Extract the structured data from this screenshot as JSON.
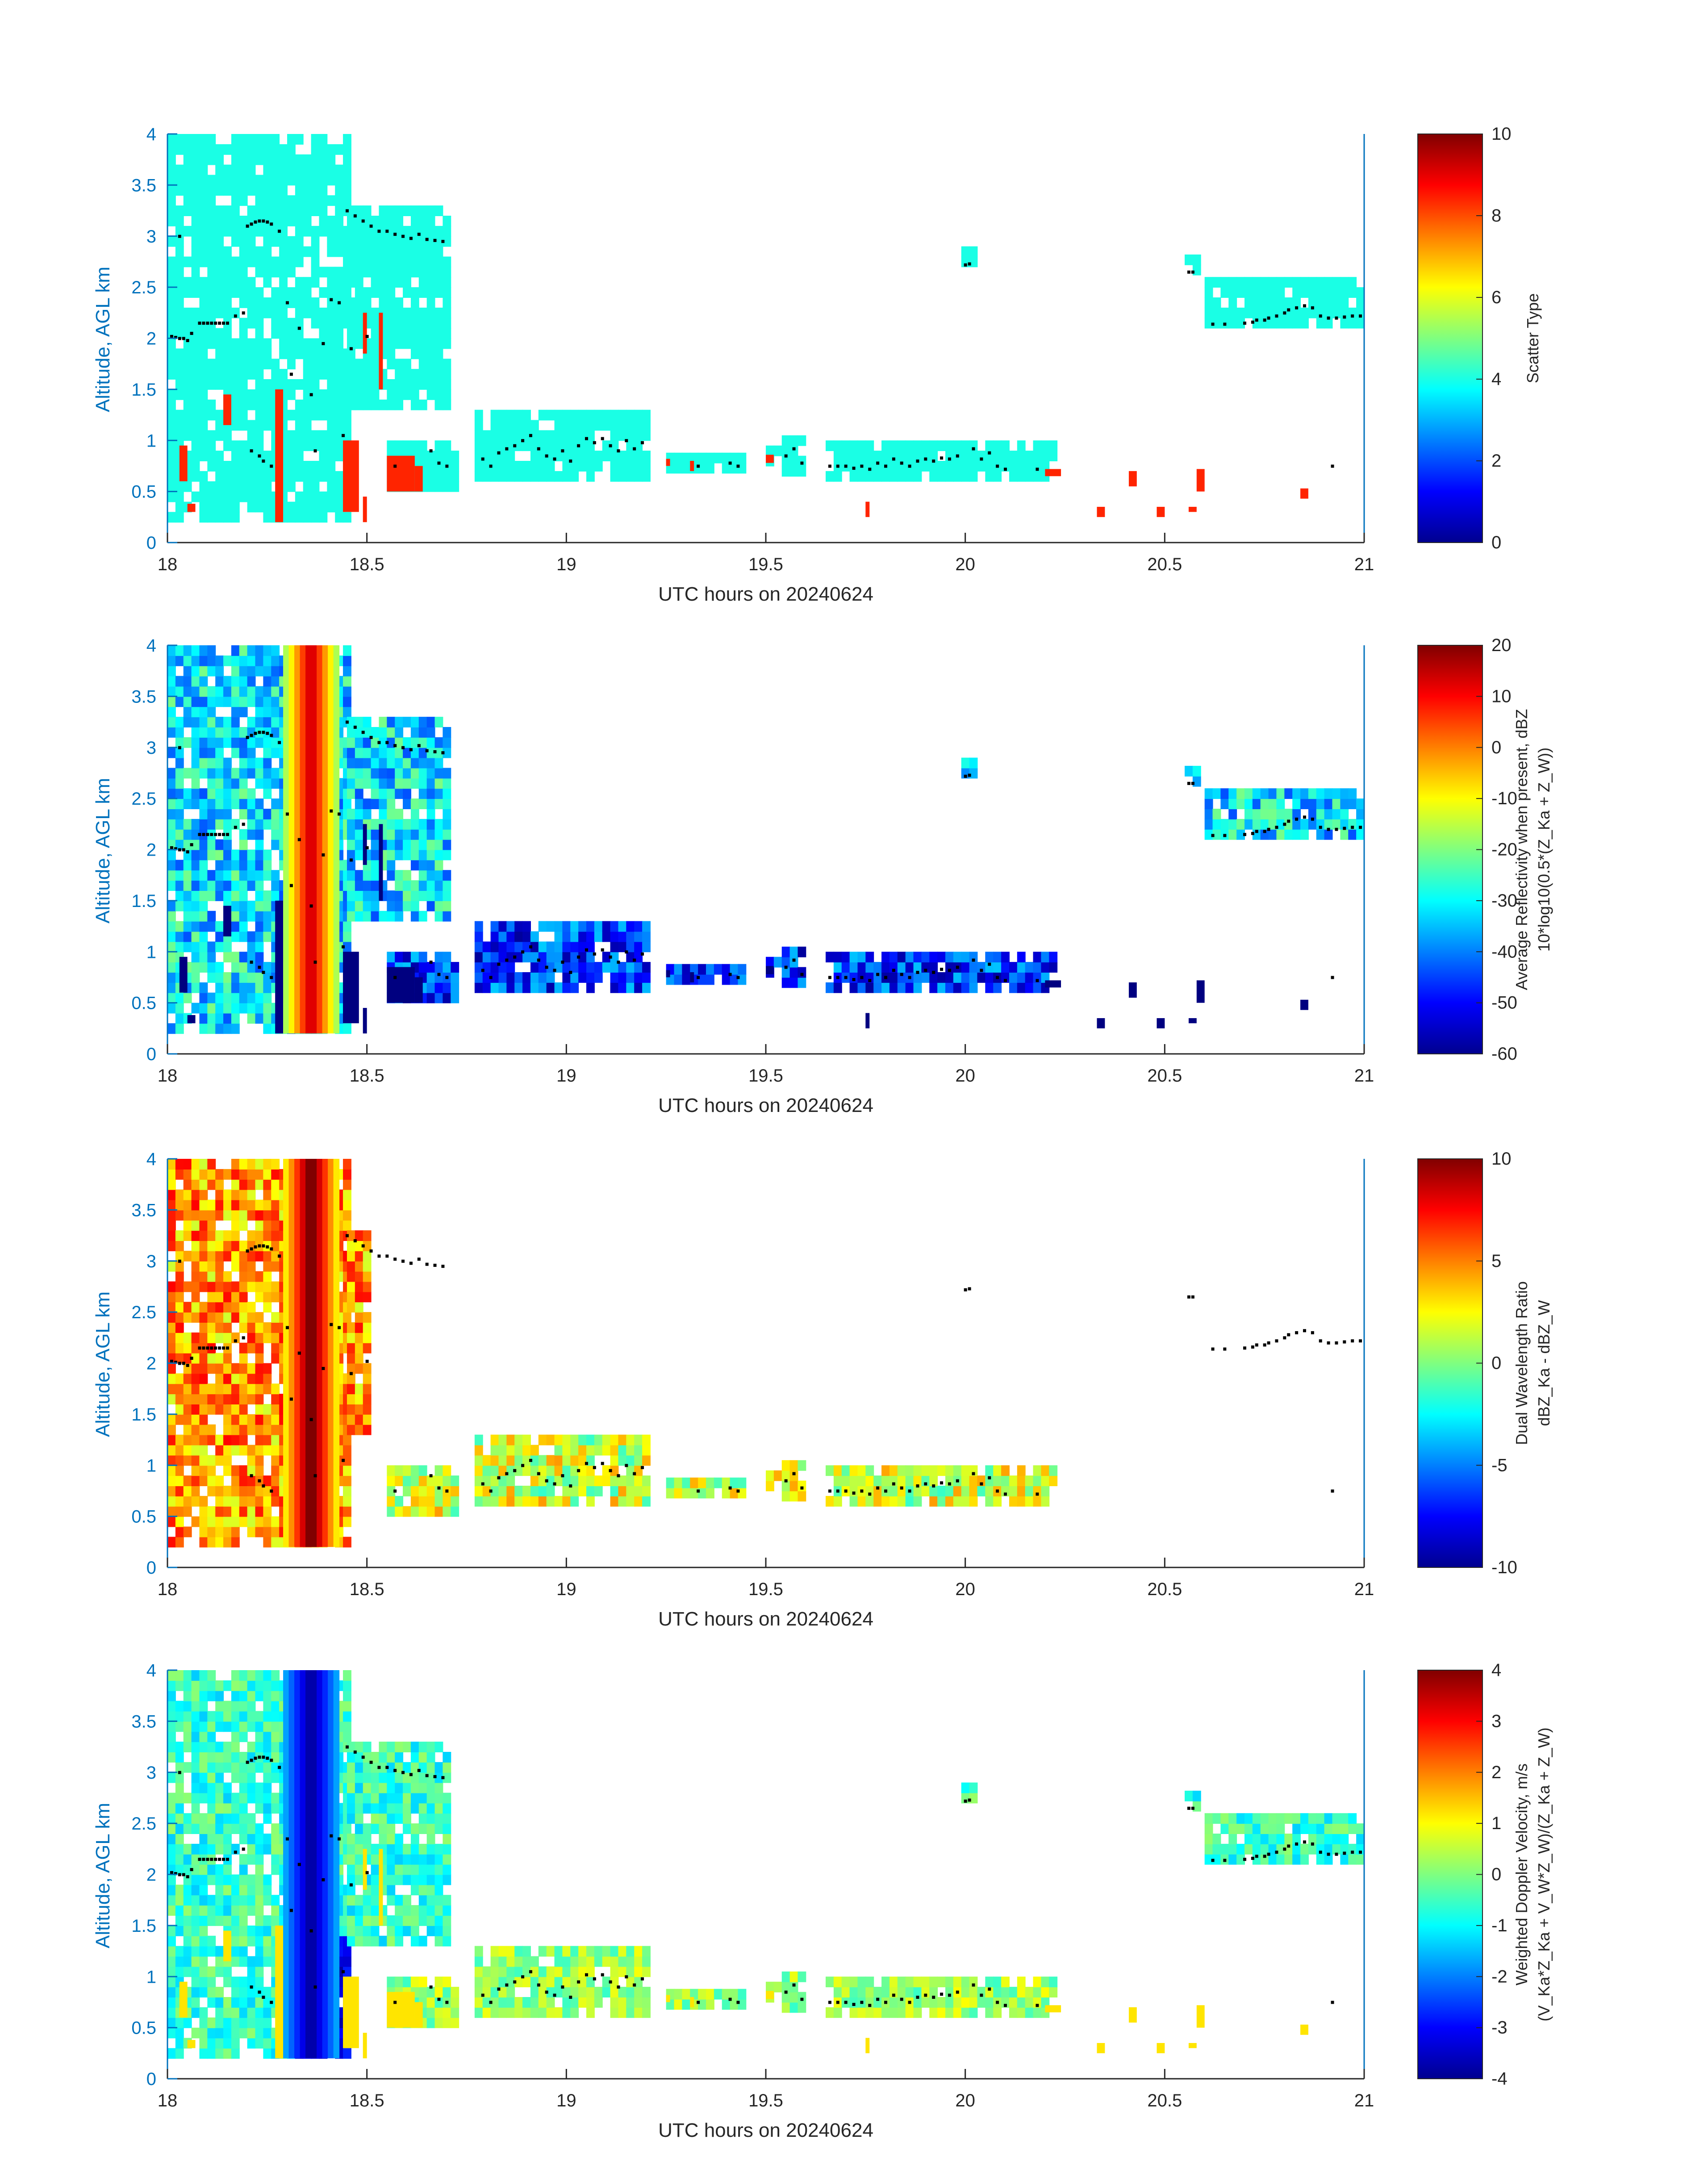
{
  "figure": {
    "date": "20240624"
  },
  "chart_data": [
    {
      "type": "heatmap",
      "xlabel": "UTC hours on 20240624",
      "ylabel": "Altitude, AGL km",
      "xlim": [
        18,
        21
      ],
      "ylim": [
        0,
        4
      ],
      "xticks": [
        "18",
        "18.5",
        "19",
        "19.5",
        "20",
        "20.5",
        "21"
      ],
      "yticks": [
        "0",
        "0.5",
        "1",
        "1.5",
        "2",
        "2.5",
        "3",
        "3.5",
        "4"
      ],
      "colorbar": {
        "label_lines": [
          "Scatter Type"
        ],
        "ticks": [
          "0",
          "2",
          "4",
          "6",
          "8",
          "10"
        ],
        "range": [
          0,
          10
        ],
        "colormap": "jet"
      },
      "field": "scatter_type",
      "feature_values": {
        "cloud": 4.0,
        "rain": 8.4
      },
      "grid": false
    },
    {
      "type": "heatmap",
      "xlabel": "UTC hours on 20240624",
      "ylabel": "Altitude, AGL km",
      "xlim": [
        18,
        21
      ],
      "ylim": [
        0,
        4
      ],
      "xticks": [
        "18",
        "18.5",
        "19",
        "19.5",
        "20",
        "20.5",
        "21"
      ],
      "yticks": [
        "0",
        "0.5",
        "1",
        "1.5",
        "2",
        "2.5",
        "3",
        "3.5",
        "4"
      ],
      "colorbar": {
        "label_lines": [
          "Average Reflectivity when present, dBZ",
          "10*log10(0.5*(Z_Ka + Z_W))"
        ],
        "ticks": [
          "-60",
          "-50",
          "-40",
          "-30",
          "-20",
          "-10",
          "0",
          "10",
          "20"
        ],
        "range": [
          -60,
          20
        ],
        "colormap": "jet"
      },
      "field": "reflectivity",
      "feature_values": {
        "upper_cloud": -32,
        "lower_cloud": -46,
        "rain_shaft": 14,
        "drizzle": -60
      },
      "grid": false
    },
    {
      "type": "heatmap",
      "xlabel": "UTC hours on 20240624",
      "ylabel": "Altitude, AGL km",
      "xlim": [
        18,
        21
      ],
      "ylim": [
        0,
        4
      ],
      "xticks": [
        "18",
        "18.5",
        "19",
        "19.5",
        "20",
        "20.5",
        "21"
      ],
      "yticks": [
        "0",
        "0.5",
        "1",
        "1.5",
        "2",
        "2.5",
        "3",
        "3.5",
        "4"
      ],
      "colorbar": {
        "label_lines": [
          "Dual Wavelength Ratio",
          "dBZ_Ka - dBZ_W"
        ],
        "ticks": [
          "-10",
          "-5",
          "0",
          "5",
          "10"
        ],
        "range": [
          -10,
          10
        ],
        "colormap": "jet"
      },
      "field": "dual_wavelength_ratio",
      "feature_values": {
        "upper_cloud": 4.5,
        "lower_cloud": 1.5,
        "rain_shaft": 10
      },
      "grid": false
    },
    {
      "type": "heatmap",
      "xlabel": "UTC hours on 20240624",
      "ylabel": "Altitude, AGL km",
      "xlim": [
        18,
        21
      ],
      "ylim": [
        0,
        4
      ],
      "xticks": [
        "18",
        "18.5",
        "19",
        "19.5",
        "20",
        "20.5",
        "21"
      ],
      "yticks": [
        "0",
        "0.5",
        "1",
        "1.5",
        "2",
        "2.5",
        "3",
        "3.5",
        "4"
      ],
      "colorbar": {
        "label_lines": [
          "Weighted Doppler Velocity, m/s",
          "(V_Ka*Z_Ka + V_W*Z_W)/(Z_Ka + Z_W)"
        ],
        "ticks": [
          "-4",
          "-3",
          "-2",
          "-1",
          "0",
          "1",
          "2",
          "3",
          "4"
        ],
        "range": [
          -4,
          4
        ],
        "colormap": "jet"
      },
      "field": "doppler_velocity",
      "feature_values": {
        "upper_cloud": -0.6,
        "lower_cloud": 0.2,
        "rain_shaft": -3.6
      },
      "grid": false
    }
  ],
  "cloud_regions": [
    {
      "x0": 18.0,
      "x1": 18.45,
      "y0": 0.2,
      "y1": 4.0,
      "kind": "upper"
    },
    {
      "x0": 18.45,
      "x1": 18.7,
      "y0": 1.3,
      "y1": 3.3,
      "kind": "upper"
    },
    {
      "x0": 18.55,
      "x1": 18.72,
      "y0": 0.5,
      "y1": 1.0,
      "kind": "lower"
    },
    {
      "x0": 18.77,
      "x1": 19.2,
      "y0": 0.6,
      "y1": 1.25,
      "kind": "lower"
    },
    {
      "x0": 19.25,
      "x1": 19.45,
      "y0": 0.68,
      "y1": 0.88,
      "kind": "lower"
    },
    {
      "x0": 19.5,
      "x1": 19.6,
      "y0": 0.65,
      "y1": 1.0,
      "kind": "lower"
    },
    {
      "x0": 19.65,
      "x1": 20.22,
      "y0": 0.6,
      "y1": 1.0,
      "kind": "lower"
    },
    {
      "x0": 19.99,
      "x1": 20.02,
      "y0": 2.7,
      "y1": 2.85,
      "kind": "upper"
    },
    {
      "x0": 20.55,
      "x1": 20.58,
      "y0": 2.62,
      "y1": 2.8,
      "kind": "upper"
    },
    {
      "x0": 20.6,
      "x1": 21.0,
      "y0": 2.1,
      "y1": 2.55,
      "kind": "upper"
    }
  ],
  "rain_patches": [
    {
      "x0": 18.03,
      "x1": 18.05,
      "y0": 0.6,
      "y1": 0.95
    },
    {
      "x0": 18.05,
      "x1": 18.07,
      "y0": 0.3,
      "y1": 0.38
    },
    {
      "x0": 18.14,
      "x1": 18.16,
      "y0": 1.15,
      "y1": 1.45
    },
    {
      "x0": 18.27,
      "x1": 18.29,
      "y0": 0.2,
      "y1": 1.5
    },
    {
      "x0": 18.44,
      "x1": 18.48,
      "y0": 0.3,
      "y1": 1.0
    },
    {
      "x0": 18.49,
      "x1": 18.5,
      "y0": 0.2,
      "y1": 0.45
    },
    {
      "x0": 18.55,
      "x1": 18.62,
      "y0": 0.5,
      "y1": 0.85
    },
    {
      "x0": 18.62,
      "x1": 18.64,
      "y0": 0.5,
      "y1": 0.75
    },
    {
      "x0": 18.49,
      "x1": 18.5,
      "y0": 1.85,
      "y1": 2.25
    },
    {
      "x0": 18.53,
      "x1": 18.54,
      "y0": 1.5,
      "y1": 2.25
    },
    {
      "x0": 19.25,
      "x1": 19.26,
      "y0": 0.75,
      "y1": 0.82
    },
    {
      "x0": 19.31,
      "x1": 19.32,
      "y0": 0.7,
      "y1": 0.8
    },
    {
      "x0": 19.5,
      "x1": 19.52,
      "y0": 0.78,
      "y1": 0.86
    },
    {
      "x0": 19.75,
      "x1": 19.76,
      "y0": 0.25,
      "y1": 0.4
    },
    {
      "x0": 20.2,
      "x1": 20.24,
      "y0": 0.65,
      "y1": 0.72
    },
    {
      "x0": 20.33,
      "x1": 20.35,
      "y0": 0.25,
      "y1": 0.35
    },
    {
      "x0": 20.41,
      "x1": 20.43,
      "y0": 0.55,
      "y1": 0.7
    },
    {
      "x0": 20.48,
      "x1": 20.5,
      "y0": 0.25,
      "y1": 0.35
    },
    {
      "x0": 20.56,
      "x1": 20.58,
      "y0": 0.3,
      "y1": 0.35
    },
    {
      "x0": 20.58,
      "x1": 20.6,
      "y0": 0.5,
      "y1": 0.72
    },
    {
      "x0": 20.84,
      "x1": 20.86,
      "y0": 0.43,
      "y1": 0.53
    }
  ],
  "rain_shaft": {
    "x0": 18.29,
    "x1": 18.43,
    "y0": 0.2,
    "y1": 4.0
  },
  "cloud_base_points": [
    [
      18.01,
      2.02
    ],
    [
      18.02,
      2.01
    ],
    [
      18.03,
      2.0
    ],
    [
      18.04,
      2.0
    ],
    [
      18.05,
      1.98
    ],
    [
      18.06,
      2.05
    ],
    [
      18.08,
      2.15
    ],
    [
      18.09,
      2.15
    ],
    [
      18.1,
      2.15
    ],
    [
      18.11,
      2.15
    ],
    [
      18.12,
      2.15
    ],
    [
      18.13,
      2.15
    ],
    [
      18.14,
      2.15
    ],
    [
      18.15,
      2.15
    ],
    [
      18.17,
      2.22
    ],
    [
      18.19,
      2.25
    ],
    [
      18.2,
      3.1
    ],
    [
      18.21,
      3.12
    ],
    [
      18.22,
      3.14
    ],
    [
      18.23,
      3.15
    ],
    [
      18.24,
      3.15
    ],
    [
      18.25,
      3.14
    ],
    [
      18.26,
      3.12
    ],
    [
      18.28,
      3.05
    ],
    [
      18.03,
      3.0
    ],
    [
      18.21,
      0.9
    ],
    [
      18.23,
      0.85
    ],
    [
      18.24,
      0.8
    ],
    [
      18.26,
      0.75
    ],
    [
      18.3,
      2.35
    ],
    [
      18.31,
      1.65
    ],
    [
      18.33,
      2.1
    ],
    [
      18.36,
      1.45
    ],
    [
      18.37,
      0.9
    ],
    [
      18.39,
      1.95
    ],
    [
      18.41,
      2.38
    ],
    [
      18.43,
      2.35
    ],
    [
      18.44,
      1.05
    ],
    [
      18.45,
      3.25
    ],
    [
      18.47,
      3.2
    ],
    [
      18.49,
      3.15
    ],
    [
      18.51,
      3.1
    ],
    [
      18.53,
      3.05
    ],
    [
      18.55,
      3.05
    ],
    [
      18.57,
      3.02
    ],
    [
      18.59,
      3.0
    ],
    [
      18.61,
      2.98
    ],
    [
      18.63,
      3.02
    ],
    [
      18.65,
      2.97
    ],
    [
      18.67,
      2.96
    ],
    [
      18.69,
      2.95
    ],
    [
      18.46,
      1.9
    ],
    [
      18.5,
      2.02
    ],
    [
      18.57,
      0.75
    ],
    [
      18.66,
      0.9
    ],
    [
      18.68,
      0.78
    ],
    [
      18.7,
      0.75
    ],
    [
      18.79,
      0.82
    ],
    [
      18.81,
      0.75
    ],
    [
      18.83,
      0.88
    ],
    [
      18.85,
      0.92
    ],
    [
      18.87,
      0.95
    ],
    [
      18.89,
      1.0
    ],
    [
      18.91,
      1.05
    ],
    [
      18.93,
      0.92
    ],
    [
      18.95,
      0.85
    ],
    [
      18.97,
      0.82
    ],
    [
      18.99,
      0.9
    ],
    [
      19.01,
      0.8
    ],
    [
      19.03,
      0.95
    ],
    [
      19.05,
      1.02
    ],
    [
      19.07,
      0.98
    ],
    [
      19.09,
      1.02
    ],
    [
      19.11,
      0.95
    ],
    [
      19.13,
      0.9
    ],
    [
      19.15,
      1.0
    ],
    [
      19.17,
      0.92
    ],
    [
      19.19,
      0.98
    ],
    [
      19.33,
      0.75
    ],
    [
      19.41,
      0.78
    ],
    [
      19.43,
      0.75
    ],
    [
      19.55,
      0.85
    ],
    [
      19.57,
      0.92
    ],
    [
      19.59,
      0.78
    ],
    [
      19.66,
      0.75
    ],
    [
      19.68,
      0.75
    ],
    [
      19.7,
      0.75
    ],
    [
      19.72,
      0.73
    ],
    [
      19.74,
      0.75
    ],
    [
      19.76,
      0.72
    ],
    [
      19.78,
      0.78
    ],
    [
      19.8,
      0.75
    ],
    [
      19.82,
      0.82
    ],
    [
      19.84,
      0.78
    ],
    [
      19.86,
      0.75
    ],
    [
      19.88,
      0.8
    ],
    [
      19.9,
      0.82
    ],
    [
      19.92,
      0.8
    ],
    [
      19.94,
      0.83
    ],
    [
      19.96,
      0.82
    ],
    [
      19.98,
      0.85
    ],
    [
      20.02,
      0.92
    ],
    [
      20.04,
      0.82
    ],
    [
      20.06,
      0.88
    ],
    [
      20.08,
      0.75
    ],
    [
      20.1,
      0.72
    ],
    [
      20.18,
      0.72
    ],
    [
      20.0,
      2.72
    ],
    [
      20.01,
      2.73
    ],
    [
      20.56,
      2.65
    ],
    [
      20.57,
      2.65
    ],
    [
      20.62,
      2.14
    ],
    [
      20.65,
      2.14
    ],
    [
      20.7,
      2.15
    ],
    [
      20.72,
      2.16
    ],
    [
      20.73,
      2.18
    ],
    [
      20.75,
      2.18
    ],
    [
      20.76,
      2.2
    ],
    [
      20.78,
      2.22
    ],
    [
      20.8,
      2.25
    ],
    [
      20.81,
      2.28
    ],
    [
      20.83,
      2.3
    ],
    [
      20.85,
      2.32
    ],
    [
      20.87,
      2.3
    ],
    [
      20.89,
      2.22
    ],
    [
      20.91,
      2.2
    ],
    [
      20.93,
      2.2
    ],
    [
      20.95,
      2.21
    ],
    [
      20.97,
      2.22
    ],
    [
      20.99,
      2.22
    ],
    [
      20.92,
      0.75
    ]
  ]
}
